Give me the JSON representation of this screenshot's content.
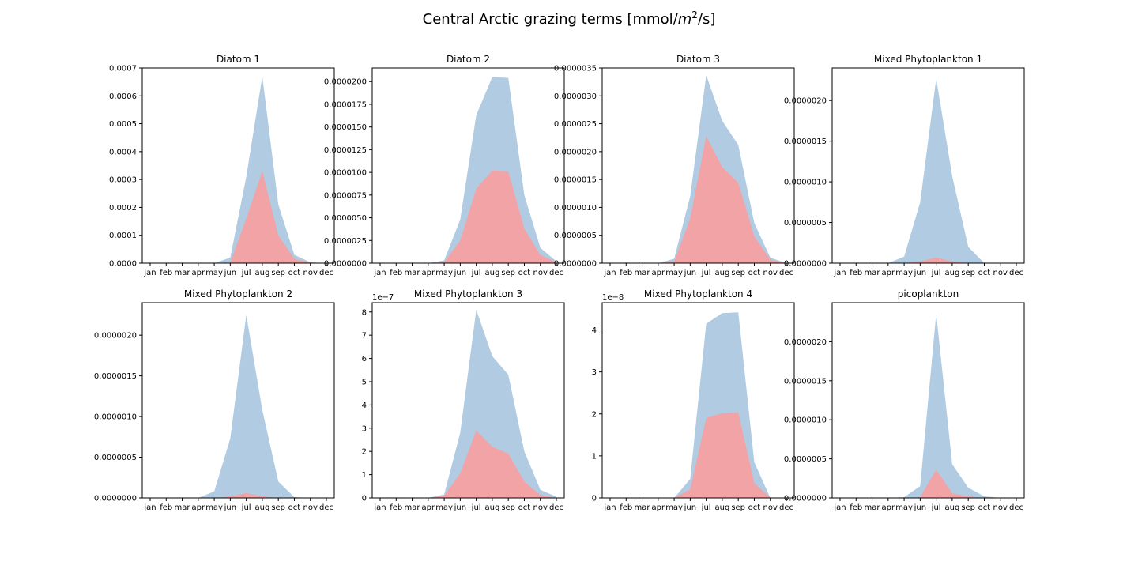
{
  "figure": {
    "title_prefix": "Central Arctic grazing terms [mmol/",
    "title_m": "m",
    "title_exp": "2",
    "title_suffix": "/s]"
  },
  "colors": {
    "blue_area": "#b0cbe2",
    "red_area": "#f2a3a5",
    "axes": "#000000"
  },
  "chart_data": [
    {
      "type": "area",
      "title": "Diatom 1",
      "categories": [
        "jan",
        "feb",
        "mar",
        "apr",
        "may",
        "jun",
        "jul",
        "aug",
        "sep",
        "oct",
        "nov",
        "dec"
      ],
      "series": [
        {
          "values": [
            0,
            0,
            0,
            0,
            0,
            2e-05,
            0.00031,
            0.00067,
            0.00021,
            3e-05,
            3e-06,
            0
          ]
        },
        {
          "values": [
            0,
            0,
            0,
            0,
            0,
            2e-06,
            0.00016,
            0.00033,
            0.0001,
            1.5e-05,
            2e-06,
            0
          ]
        }
      ],
      "ylim": [
        0,
        0.0007
      ],
      "yticks": [
        "0.0000",
        "0.0001",
        "0.0002",
        "0.0003",
        "0.0004",
        "0.0005",
        "0.0006",
        "0.0007"
      ],
      "offset_text": ""
    },
    {
      "type": "area",
      "title": "Diatom 2",
      "categories": [
        "jan",
        "feb",
        "mar",
        "apr",
        "may",
        "jun",
        "jul",
        "aug",
        "sep",
        "oct",
        "nov",
        "dec"
      ],
      "series": [
        {
          "values": [
            0,
            0,
            0,
            0,
            3e-07,
            4.8e-06,
            1.63e-05,
            2.05e-05,
            2.04e-05,
            7.5e-06,
            1.7e-06,
            2e-07
          ]
        },
        {
          "values": [
            0,
            0,
            0,
            0,
            1e-07,
            2.5e-06,
            8.2e-06,
            1.02e-05,
            1.01e-05,
            3.8e-06,
            9e-07,
            1e-07
          ]
        }
      ],
      "ylim": [
        0,
        2.15e-05
      ],
      "yticks": [
        "0.0000000",
        "0.0000025",
        "0.0000050",
        "0.0000075",
        "0.0000100",
        "0.0000125",
        "0.0000150",
        "0.0000175",
        "0.0000200"
      ],
      "offset_text": ""
    },
    {
      "type": "area",
      "title": "Diatom 3",
      "categories": [
        "jan",
        "feb",
        "mar",
        "apr",
        "may",
        "jun",
        "jul",
        "aug",
        "sep",
        "oct",
        "nov",
        "dec"
      ],
      "series": [
        {
          "values": [
            0,
            1e-08,
            0,
            0,
            8e-08,
            1.2e-06,
            3.37e-06,
            2.55e-06,
            2.12e-06,
            7.2e-07,
            1e-07,
            0
          ]
        },
        {
          "values": [
            0,
            0,
            0,
            0,
            3e-08,
            8e-07,
            2.28e-06,
            1.72e-06,
            1.44e-06,
            4.8e-07,
            6e-08,
            0
          ]
        }
      ],
      "ylim": [
        0,
        3.5e-06
      ],
      "yticks": [
        "0.0000000",
        "0.0000005",
        "0.0000010",
        "0.0000015",
        "0.0000020",
        "0.0000025",
        "0.0000030",
        "0.0000035"
      ],
      "offset_text": ""
    },
    {
      "type": "area",
      "title": "Mixed Phytoplankton 1",
      "categories": [
        "jan",
        "feb",
        "mar",
        "apr",
        "may",
        "jun",
        "jul",
        "aug",
        "sep",
        "oct",
        "nov",
        "dec"
      ],
      "series": [
        {
          "values": [
            0,
            0,
            0,
            0,
            8e-08,
            7.5e-07,
            2.27e-06,
            1.07e-06,
            2e-07,
            0,
            0,
            0
          ]
        },
        {
          "values": [
            0,
            0,
            0,
            0,
            0,
            2e-08,
            7e-08,
            2e-08,
            0,
            0,
            0,
            0
          ]
        }
      ],
      "ylim": [
        0,
        2.4e-06
      ],
      "yticks": [
        "0.0000000",
        "0.0000005",
        "0.0000010",
        "0.0000015",
        "0.0000020"
      ],
      "offset_text": ""
    },
    {
      "type": "area",
      "title": "Mixed Phytoplankton 2",
      "categories": [
        "jan",
        "feb",
        "mar",
        "apr",
        "may",
        "jun",
        "jul",
        "aug",
        "sep",
        "oct",
        "nov",
        "dec"
      ],
      "series": [
        {
          "values": [
            0,
            0,
            0,
            0,
            8e-08,
            7.3e-07,
            2.25e-06,
            1.08e-06,
            2e-07,
            1e-08,
            0,
            0
          ]
        },
        {
          "values": [
            0,
            0,
            0,
            0,
            0,
            2e-08,
            6e-08,
            2e-08,
            0,
            0,
            0,
            0
          ]
        }
      ],
      "ylim": [
        0,
        2.4e-06
      ],
      "yticks": [
        "0.0000000",
        "0.0000005",
        "0.0000010",
        "0.0000015",
        "0.0000020"
      ],
      "offset_text": ""
    },
    {
      "type": "area",
      "title": "Mixed Phytoplankton 3",
      "categories": [
        "jan",
        "feb",
        "mar",
        "apr",
        "may",
        "jun",
        "jul",
        "aug",
        "sep",
        "oct",
        "nov",
        "dec"
      ],
      "series": [
        {
          "values": [
            0.02,
            0.02,
            0.01,
            0,
            0.15,
            2.8,
            8.1,
            6.1,
            5.3,
            2.0,
            0.35,
            0.05
          ]
        },
        {
          "values": [
            0,
            0,
            0,
            0,
            0.1,
            1.05,
            2.9,
            2.2,
            1.9,
            0.7,
            0.12,
            0.01
          ]
        }
      ],
      "ylim": [
        0,
        8.4
      ],
      "yticks": [
        "0",
        "1",
        "2",
        "3",
        "4",
        "5",
        "6",
        "7",
        "8"
      ],
      "offset_text": "1e−7"
    },
    {
      "type": "area",
      "title": "Mixed Phytoplankton 4",
      "categories": [
        "jan",
        "feb",
        "mar",
        "apr",
        "may",
        "jun",
        "jul",
        "aug",
        "sep",
        "oct",
        "nov",
        "dec"
      ],
      "series": [
        {
          "values": [
            0.01,
            0.01,
            0,
            0,
            0,
            0.45,
            4.15,
            4.4,
            4.42,
            0.85,
            0,
            0.01
          ]
        },
        {
          "values": [
            0,
            0,
            0,
            0,
            0,
            0.2,
            1.9,
            2.02,
            2.03,
            0.35,
            0,
            0
          ]
        }
      ],
      "ylim": [
        0,
        4.65
      ],
      "yticks": [
        "0",
        "1",
        "2",
        "3",
        "4"
      ],
      "offset_text": "1e−8"
    },
    {
      "type": "area",
      "title": "picoplankton",
      "categories": [
        "jan",
        "feb",
        "mar",
        "apr",
        "may",
        "jun",
        "jul",
        "aug",
        "sep",
        "oct",
        "nov",
        "dec"
      ],
      "series": [
        {
          "values": [
            0,
            0,
            0,
            0,
            1e-08,
            1.5e-07,
            2.36e-06,
            4.3e-07,
            1.3e-07,
            2e-08,
            0,
            0
          ]
        },
        {
          "values": [
            0,
            0,
            0,
            0,
            0,
            1e-08,
            3.6e-07,
            6e-08,
            2e-08,
            0,
            0,
            0
          ]
        }
      ],
      "ylim": [
        0,
        2.5e-06
      ],
      "yticks": [
        "0.0000000",
        "0.0000005",
        "0.0000010",
        "0.0000015",
        "0.0000020"
      ],
      "offset_text": ""
    }
  ]
}
